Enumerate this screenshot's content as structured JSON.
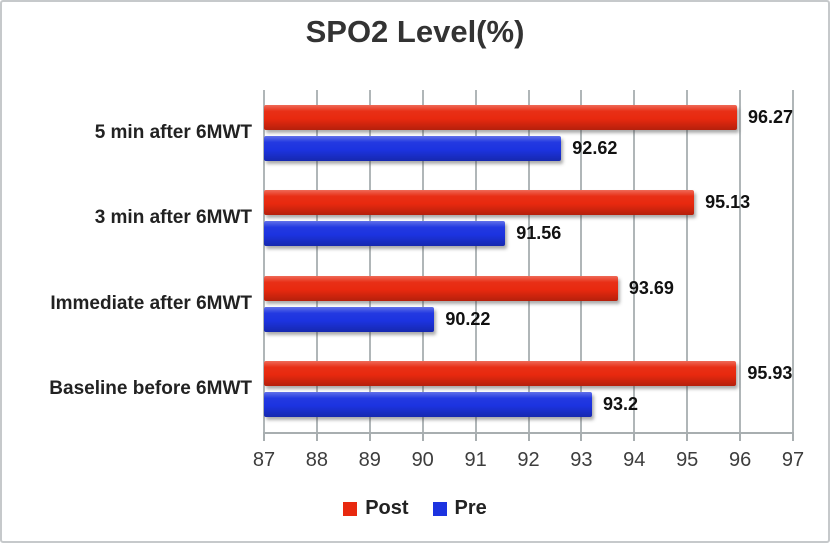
{
  "figure": {
    "background": "#ffffff",
    "border_color": "#c6c9cb"
  },
  "chart_data": {
    "type": "bar",
    "orientation": "horizontal",
    "title": "SPO2 Level(%)",
    "categories": [
      "5 min after 6MWT",
      "3 min after 6MWT",
      "Immediate after 6MWT",
      "Baseline before 6MWT"
    ],
    "series": [
      {
        "name": "Post",
        "color": "#e8290f",
        "values": [
          96.27,
          95.13,
          93.69,
          95.93
        ],
        "labels": [
          "96.27",
          "95.13",
          "93.69",
          "95.93"
        ]
      },
      {
        "name": "Pre",
        "color": "#1c33e0",
        "values": [
          92.62,
          91.56,
          90.22,
          93.2
        ],
        "labels": [
          "92.62",
          "91.56",
          "90.22",
          "93.2"
        ]
      }
    ],
    "xlim": [
      87,
      97
    ],
    "x_ticks": [
      "87",
      "88",
      "89",
      "90",
      "91",
      "92",
      "93",
      "94",
      "95",
      "96",
      "97"
    ],
    "grid": true,
    "legend_position": "bottom",
    "gridline_color": "#b4bbbd",
    "axis_line_color": "#a8aeb0",
    "tick_label_color": "#3d3d3d",
    "category_label_color": "#222222",
    "data_label_color": "#111111",
    "title_color": "#333333"
  }
}
